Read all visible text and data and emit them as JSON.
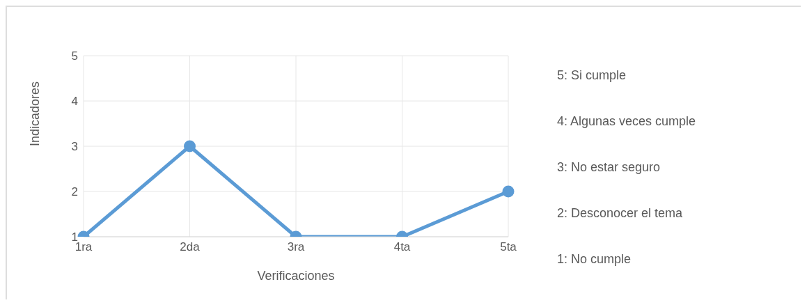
{
  "chart_data": {
    "type": "line",
    "xlabel": "Verificaciones",
    "ylabel": "Indicadores",
    "categories": [
      "1ra",
      "2da",
      "3ra",
      "4ta",
      "5ta"
    ],
    "series": [
      {
        "color": "#5b9bd5",
        "values": [
          1,
          3,
          1,
          1,
          2
        ]
      }
    ],
    "ylim": [
      1,
      5
    ],
    "yticks": [
      1,
      2,
      3,
      4,
      5
    ],
    "grid": true,
    "marker": "circle",
    "line_style": "solid",
    "annotations": [
      "5: Si cumple",
      "4: Algunas veces cumple",
      "3: No estar seguro",
      "2: Desconocer el tema",
      "1: No cumple"
    ]
  }
}
